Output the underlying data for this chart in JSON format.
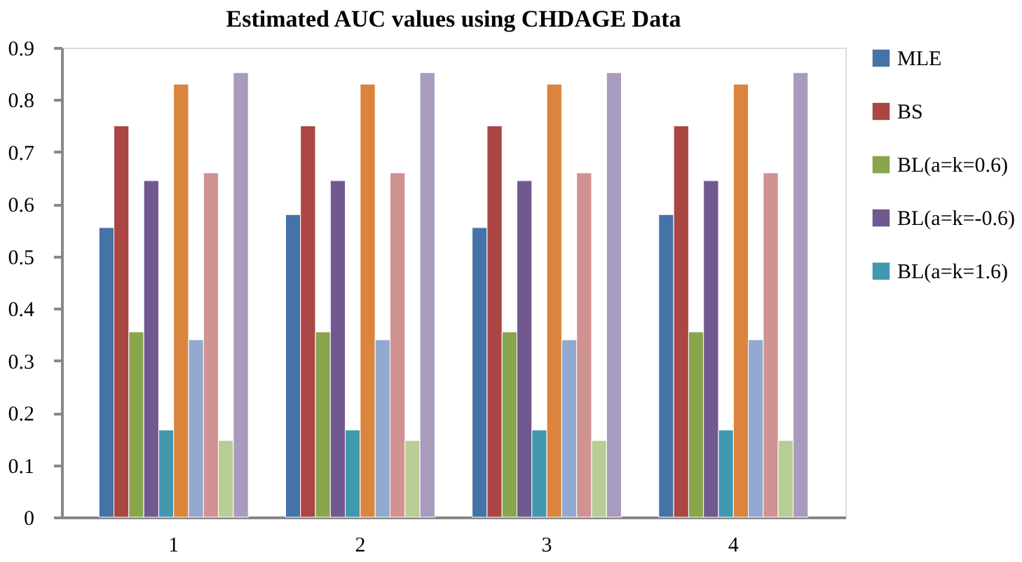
{
  "chart_data": {
    "type": "bar",
    "title": "Estimated AUC values using CHDAGE Data",
    "categories": [
      "1",
      "2",
      "3",
      "4"
    ],
    "series": [
      {
        "name": "MLE",
        "color": "#4572a7",
        "values": [
          0.555,
          0.58,
          0.555,
          0.58
        ]
      },
      {
        "name": "BS",
        "color": "#aa4643",
        "values": [
          0.75,
          0.75,
          0.75,
          0.75
        ]
      },
      {
        "name": "BL(a=k=0.6)",
        "color": "#89a54e",
        "values": [
          0.355,
          0.355,
          0.355,
          0.355
        ]
      },
      {
        "name": "BL(a=k=-0.6)",
        "color": "#71588f",
        "values": [
          0.645,
          0.645,
          0.645,
          0.645
        ]
      },
      {
        "name": "BL(a=k=1.6)",
        "color": "#4198af",
        "values": [
          0.167,
          0.167,
          0.167,
          0.167
        ]
      },
      {
        "color": "#db843d",
        "values": [
          0.83,
          0.83,
          0.83,
          0.83
        ]
      },
      {
        "color": "#93a9cf",
        "values": [
          0.34,
          0.34,
          0.34,
          0.34
        ]
      },
      {
        "color": "#d19392",
        "values": [
          0.66,
          0.66,
          0.66,
          0.66
        ]
      },
      {
        "color": "#b9cd96",
        "values": [
          0.147,
          0.147,
          0.147,
          0.147
        ]
      },
      {
        "color": "#a99bbd",
        "values": [
          0.852,
          0.852,
          0.852,
          0.852
        ]
      }
    ],
    "ylim": [
      0,
      0.9
    ],
    "yticks": [
      0,
      0.1,
      0.2,
      0.3,
      0.4,
      0.5,
      0.6,
      0.7,
      0.8,
      0.9
    ],
    "grid": false,
    "legend": "right"
  }
}
